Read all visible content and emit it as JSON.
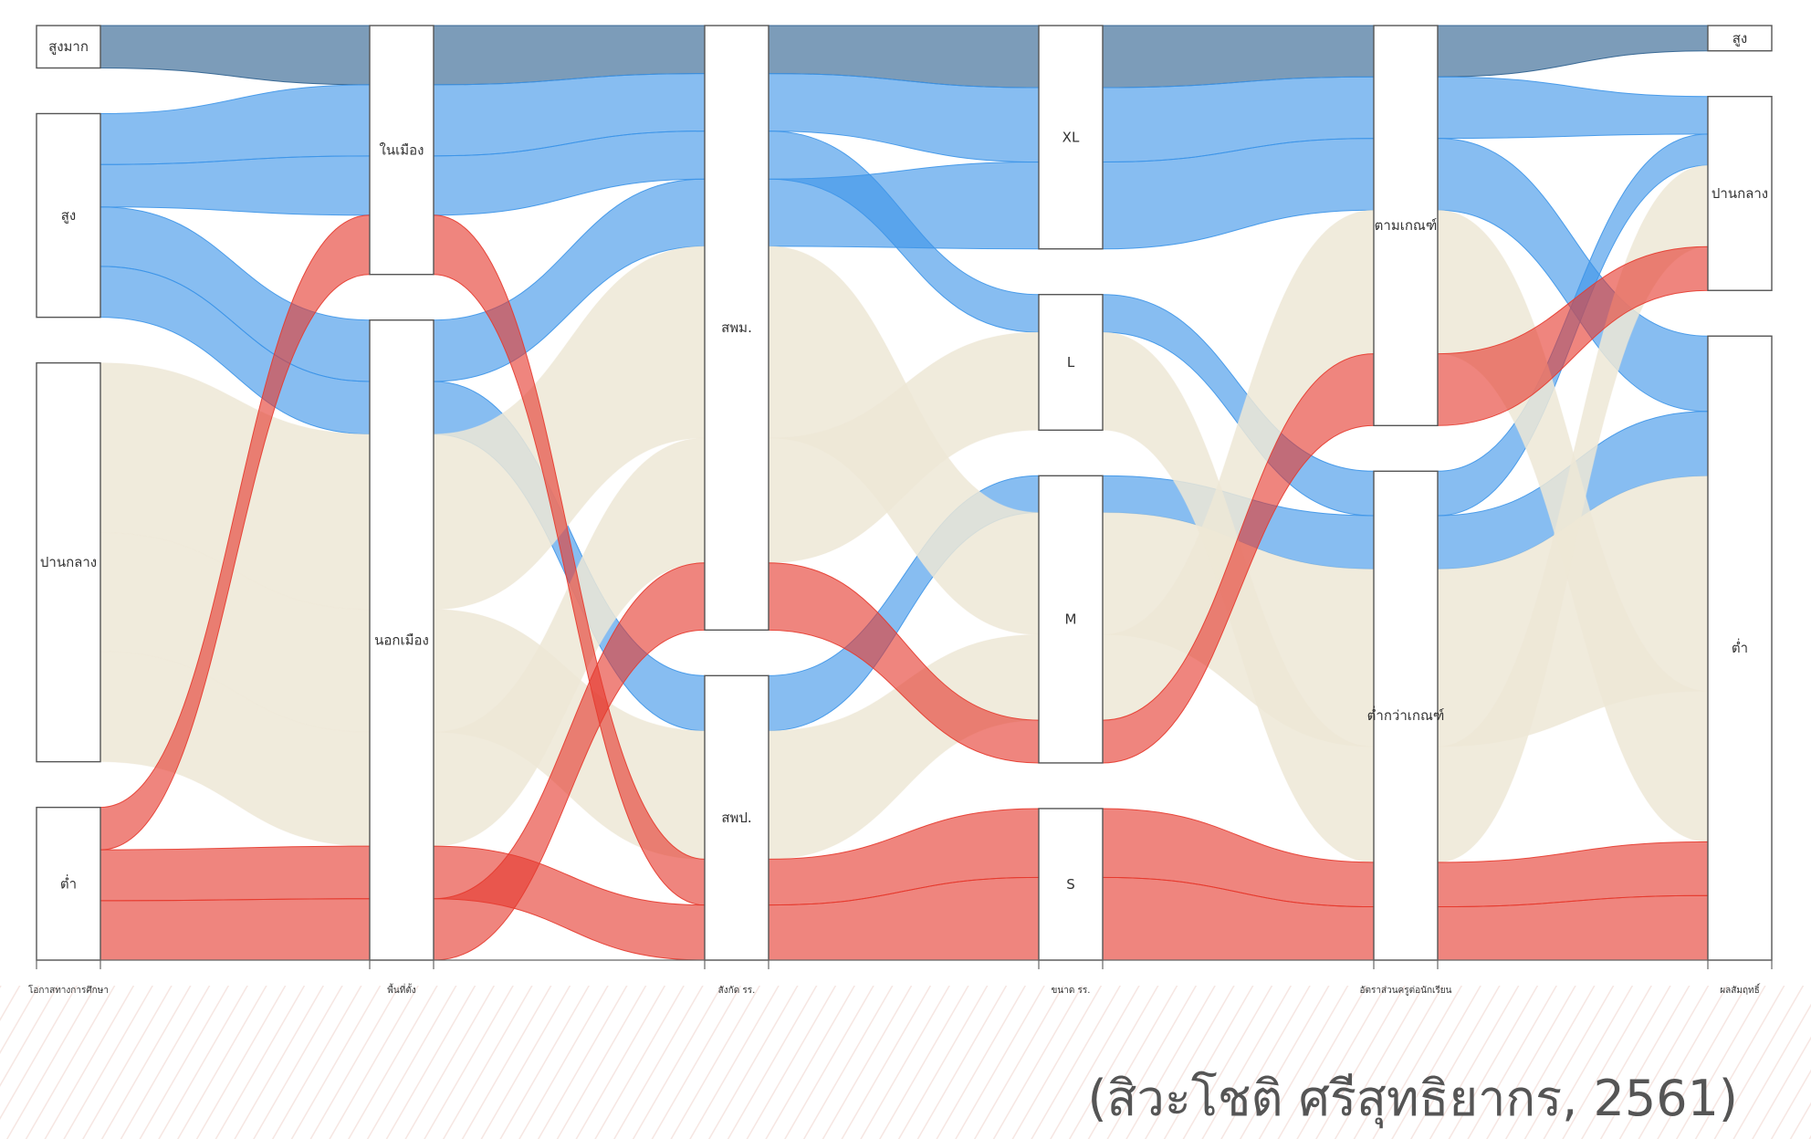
{
  "colors": {
    "very_high": "#2c5f8e",
    "high": "#3d95e8",
    "medium": "#ede7d6",
    "low": "#e53a2e",
    "node_fill": "#ffffff",
    "node_stroke": "#555555"
  },
  "axes": [
    {
      "label": "โอกาสทางการศึกษา",
      "categories": [
        {
          "key": "very_high",
          "label": "สูงมาก",
          "value": 5
        },
        {
          "key": "high",
          "label": "สูง",
          "value": 24
        },
        {
          "key": "medium",
          "label": "ปานกลาง",
          "value": 47
        },
        {
          "key": "low",
          "label": "ต่ำ",
          "value": 18
        }
      ]
    },
    {
      "label": "พื้นที่ตั้ง",
      "categories": [
        {
          "key": "city",
          "label": "ในเมือง",
          "value": 28
        },
        {
          "key": "rural",
          "label": "นอกเมือง",
          "value": 72
        }
      ]
    },
    {
      "label": "สังกัด รร.",
      "categories": [
        {
          "key": "spm",
          "label": "สพม.",
          "value": 68
        },
        {
          "key": "spp",
          "label": "สพป.",
          "value": 32
        }
      ]
    },
    {
      "label": "ขนาด รร.",
      "categories": [
        {
          "key": "xl",
          "label": "XL",
          "value": 28
        },
        {
          "key": "l",
          "label": "L",
          "value": 17
        },
        {
          "key": "m",
          "label": "M",
          "value": 36
        },
        {
          "key": "s",
          "label": "S",
          "value": 19
        }
      ]
    },
    {
      "label": "อัตราส่วนครูต่อนักเรียน",
      "categories": [
        {
          "key": "meet",
          "label": "ตามเกณฑ์",
          "value": 45
        },
        {
          "key": "below",
          "label": "ต่ำกว่าเกณฑ์",
          "value": 55
        }
      ]
    },
    {
      "label": "ผลสัมฤทธิ์",
      "categories": [
        {
          "key": "high",
          "label": "สูง",
          "value": 3
        },
        {
          "key": "mid",
          "label": "ปานกลาง",
          "value": 23
        },
        {
          "key": "low",
          "label": "ต่ำ",
          "value": 74
        }
      ]
    }
  ],
  "citation": "(สิวะโชติ ศรีสุทธิยากร, 2561)"
}
